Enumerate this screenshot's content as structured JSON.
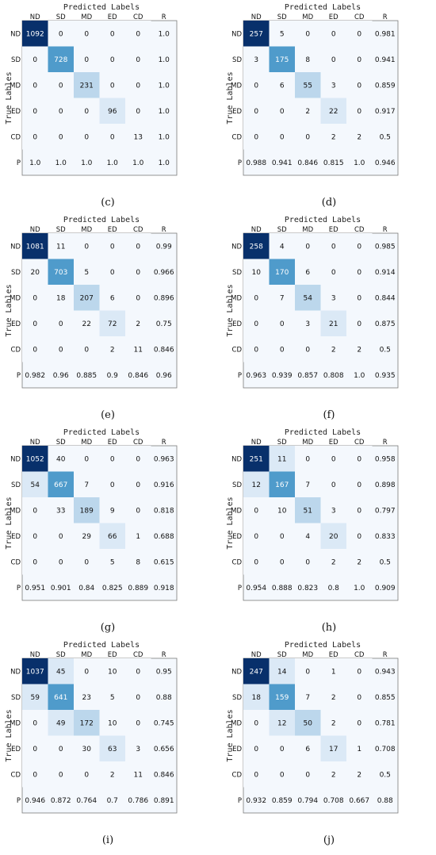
{
  "shared": {
    "predicted_title": "Predicted Labels",
    "true_title": "True Lables",
    "col_labels": [
      "ND",
      "SD",
      "MD",
      "ED",
      "CD",
      "R"
    ],
    "row_labels": [
      "ND",
      "SD",
      "MD",
      "ED",
      "CD",
      "P"
    ],
    "colormap": [
      "#f4f8fd",
      "#dbe9f6",
      "#bcd7ec",
      "#8dc0dd",
      "#4f9bcb",
      "#2171b5",
      "#08306b"
    ]
  },
  "chart_data": [
    {
      "type": "heatmap",
      "caption": "(c)",
      "title": "Predicted Labels",
      "xlabel": "Predicted Labels",
      "ylabel": "True Lables",
      "x_categories": [
        "ND",
        "SD",
        "MD",
        "ED",
        "CD",
        "R"
      ],
      "y_categories": [
        "ND",
        "SD",
        "MD",
        "ED",
        "CD",
        "P"
      ],
      "matrix": [
        [
          1092,
          0,
          0,
          0,
          0
        ],
        [
          0,
          728,
          0,
          0,
          0
        ],
        [
          0,
          0,
          231,
          0,
          0
        ],
        [
          0,
          0,
          0,
          96,
          0
        ],
        [
          0,
          0,
          0,
          0,
          13
        ]
      ],
      "recall": [
        "1.0",
        "1.0",
        "1.0",
        "1.0",
        "1.0"
      ],
      "precision": [
        "1.0",
        "1.0",
        "1.0",
        "1.0",
        "1.0"
      ],
      "overall": "1.0"
    },
    {
      "type": "heatmap",
      "caption": "(d)",
      "title": "Predicted Labels",
      "xlabel": "Predicted Labels",
      "ylabel": "True Lables",
      "x_categories": [
        "ND",
        "SD",
        "MD",
        "ED",
        "CD",
        "R"
      ],
      "y_categories": [
        "ND",
        "SD",
        "MD",
        "ED",
        "CD",
        "P"
      ],
      "matrix": [
        [
          257,
          5,
          0,
          0,
          0
        ],
        [
          3,
          175,
          8,
          0,
          0
        ],
        [
          0,
          6,
          55,
          3,
          0
        ],
        [
          0,
          0,
          2,
          22,
          0
        ],
        [
          0,
          0,
          0,
          2,
          2
        ]
      ],
      "recall": [
        "0.981",
        "0.941",
        "0.859",
        "0.917",
        "0.5"
      ],
      "precision": [
        "0.988",
        "0.941",
        "0.846",
        "0.815",
        "1.0"
      ],
      "overall": "0.946"
    },
    {
      "type": "heatmap",
      "caption": "(e)",
      "title": "Predicted Labels",
      "xlabel": "Predicted Labels",
      "ylabel": "True Lables",
      "x_categories": [
        "ND",
        "SD",
        "MD",
        "ED",
        "CD",
        "R"
      ],
      "y_categories": [
        "ND",
        "SD",
        "MD",
        "ED",
        "CD",
        "P"
      ],
      "matrix": [
        [
          1081,
          11,
          0,
          0,
          0
        ],
        [
          20,
          703,
          5,
          0,
          0
        ],
        [
          0,
          18,
          207,
          6,
          0
        ],
        [
          0,
          0,
          22,
          72,
          2
        ],
        [
          0,
          0,
          0,
          2,
          11
        ]
      ],
      "recall": [
        "0.99",
        "0.966",
        "0.896",
        "0.75",
        "0.846"
      ],
      "precision": [
        "0.982",
        "0.96",
        "0.885",
        "0.9",
        "0.846"
      ],
      "overall": "0.96"
    },
    {
      "type": "heatmap",
      "caption": "(f)",
      "title": "Predicted Labels",
      "xlabel": "Predicted Labels",
      "ylabel": "True Lables",
      "x_categories": [
        "ND",
        "SD",
        "MD",
        "ED",
        "CD",
        "R"
      ],
      "y_categories": [
        "ND",
        "SD",
        "MD",
        "ED",
        "CD",
        "P"
      ],
      "matrix": [
        [
          258,
          4,
          0,
          0,
          0
        ],
        [
          10,
          170,
          6,
          0,
          0
        ],
        [
          0,
          7,
          54,
          3,
          0
        ],
        [
          0,
          0,
          3,
          21,
          0
        ],
        [
          0,
          0,
          0,
          2,
          2
        ]
      ],
      "recall": [
        "0.985",
        "0.914",
        "0.844",
        "0.875",
        "0.5"
      ],
      "precision": [
        "0.963",
        "0.939",
        "0.857",
        "0.808",
        "1.0"
      ],
      "overall": "0.935"
    },
    {
      "type": "heatmap",
      "caption": "(g)",
      "title": "Predicted Labels",
      "xlabel": "Predicted Labels",
      "ylabel": "True Lables",
      "x_categories": [
        "ND",
        "SD",
        "MD",
        "ED",
        "CD",
        "R"
      ],
      "y_categories": [
        "ND",
        "SD",
        "MD",
        "ED",
        "CD",
        "P"
      ],
      "matrix": [
        [
          1052,
          40,
          0,
          0,
          0
        ],
        [
          54,
          667,
          7,
          0,
          0
        ],
        [
          0,
          33,
          189,
          9,
          0
        ],
        [
          0,
          0,
          29,
          66,
          1
        ],
        [
          0,
          0,
          0,
          5,
          8
        ]
      ],
      "recall": [
        "0.963",
        "0.916",
        "0.818",
        "0.688",
        "0.615"
      ],
      "precision": [
        "0.951",
        "0.901",
        "0.84",
        "0.825",
        "0.889"
      ],
      "overall": "0.918"
    },
    {
      "type": "heatmap",
      "caption": "(h)",
      "title": "Predicted Labels",
      "xlabel": "Predicted Labels",
      "ylabel": "True Lables",
      "x_categories": [
        "ND",
        "SD",
        "MD",
        "ED",
        "CD",
        "R"
      ],
      "y_categories": [
        "ND",
        "SD",
        "MD",
        "ED",
        "CD",
        "P"
      ],
      "matrix": [
        [
          251,
          11,
          0,
          0,
          0
        ],
        [
          12,
          167,
          7,
          0,
          0
        ],
        [
          0,
          10,
          51,
          3,
          0
        ],
        [
          0,
          0,
          4,
          20,
          0
        ],
        [
          0,
          0,
          0,
          2,
          2
        ]
      ],
      "recall": [
        "0.958",
        "0.898",
        "0.797",
        "0.833",
        "0.5"
      ],
      "precision": [
        "0.954",
        "0.888",
        "0.823",
        "0.8",
        "1.0"
      ],
      "overall": "0.909"
    },
    {
      "type": "heatmap",
      "caption": "(i)",
      "title": "Predicted Labels",
      "xlabel": "Predicted Labels",
      "ylabel": "True Lables",
      "x_categories": [
        "ND",
        "SD",
        "MD",
        "ED",
        "CD",
        "R"
      ],
      "y_categories": [
        "ND",
        "SD",
        "MD",
        "ED",
        "CD",
        "P"
      ],
      "matrix": [
        [
          1037,
          45,
          0,
          10,
          0
        ],
        [
          59,
          641,
          23,
          5,
          0
        ],
        [
          0,
          49,
          172,
          10,
          0
        ],
        [
          0,
          0,
          30,
          63,
          3
        ],
        [
          0,
          0,
          0,
          2,
          11
        ]
      ],
      "recall": [
        "0.95",
        "0.88",
        "0.745",
        "0.656",
        "0.846"
      ],
      "precision": [
        "0.946",
        "0.872",
        "0.764",
        "0.7",
        "0.786"
      ],
      "overall": "0.891"
    },
    {
      "type": "heatmap",
      "caption": "(j)",
      "title": "Predicted Labels",
      "xlabel": "Predicted Labels",
      "ylabel": "True Lables",
      "x_categories": [
        "ND",
        "SD",
        "MD",
        "ED",
        "CD",
        "R"
      ],
      "y_categories": [
        "ND",
        "SD",
        "MD",
        "ED",
        "CD",
        "P"
      ],
      "matrix": [
        [
          247,
          14,
          0,
          1,
          0
        ],
        [
          18,
          159,
          7,
          2,
          0
        ],
        [
          0,
          12,
          50,
          2,
          0
        ],
        [
          0,
          0,
          6,
          17,
          1
        ],
        [
          0,
          0,
          0,
          2,
          2
        ]
      ],
      "recall": [
        "0.943",
        "0.855",
        "0.781",
        "0.708",
        "0.5"
      ],
      "precision": [
        "0.932",
        "0.859",
        "0.794",
        "0.708",
        "0.667"
      ],
      "overall": "0.88"
    }
  ]
}
